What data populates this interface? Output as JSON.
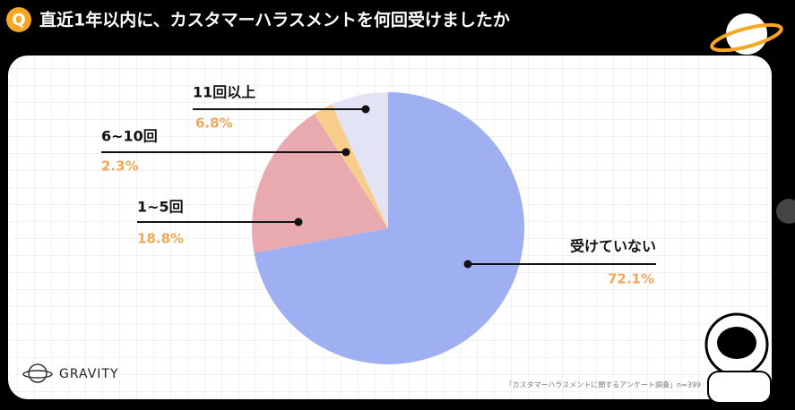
{
  "header": {
    "badge": "Q"
  },
  "chart_data": {
    "type": "pie",
    "title": "直近1年以内に、カスタマーハラスメントを何回受けましたか",
    "categories": [
      "受けていない",
      "1~5回",
      "6~10回",
      "11回以上"
    ],
    "values": [
      72.1,
      18.8,
      2.3,
      6.8
    ],
    "value_labels": [
      "72.1%",
      "18.8%",
      "2.3%",
      "6.8%"
    ],
    "colors": [
      "#9eaff2",
      "#e8aaae",
      "#f8cd8c",
      "#e2e4f6"
    ]
  },
  "brand": "GRAVITY",
  "source": "「カスタマーハラスメントに関する​アンケート調査」n=399"
}
